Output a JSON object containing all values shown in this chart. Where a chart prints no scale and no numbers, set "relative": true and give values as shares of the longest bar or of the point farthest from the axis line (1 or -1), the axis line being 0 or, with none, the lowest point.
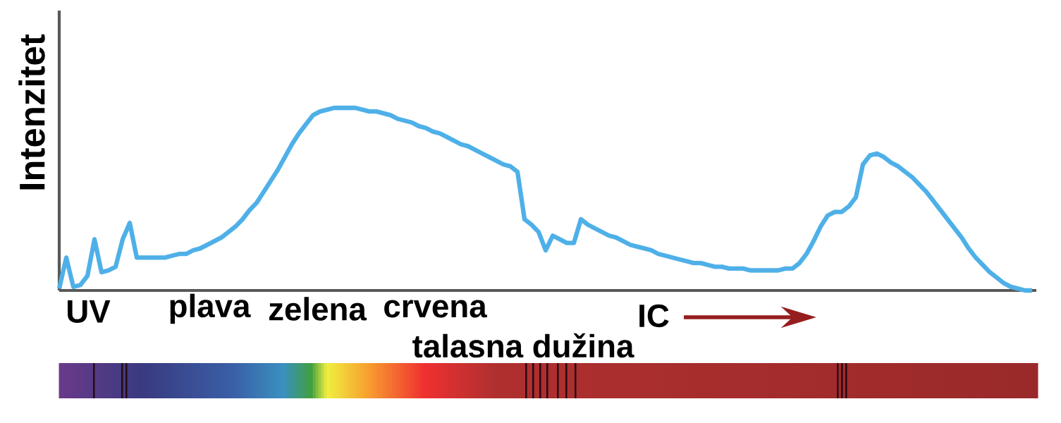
{
  "chart_data": {
    "type": "line",
    "relative": true,
    "xlabel": "talasna dužina",
    "ylabel": "Intenzitet",
    "annotations": [
      "UV",
      "plava",
      "zelena",
      "crvena",
      "IC"
    ],
    "categories": [
      null,
      null,
      null,
      null,
      null,
      null,
      null,
      null,
      null,
      null,
      null,
      null,
      null,
      null,
      null,
      null,
      null,
      null,
      null,
      null,
      null,
      null,
      null,
      null,
      null,
      null,
      null,
      null,
      null,
      null,
      null,
      null,
      null,
      null,
      null,
      null,
      null,
      null,
      null,
      null,
      null,
      null,
      null,
      null,
      null,
      null,
      null,
      null,
      null,
      null,
      null,
      null,
      null,
      null,
      null,
      null,
      null,
      null,
      null,
      null,
      null,
      null,
      null,
      null,
      null,
      null,
      null,
      null,
      null,
      null,
      null,
      null,
      null,
      null,
      null,
      null,
      null,
      null,
      null,
      null,
      null,
      null,
      null,
      null,
      null,
      null,
      null,
      null,
      null,
      null,
      null,
      null,
      null,
      null,
      null,
      null,
      null,
      null,
      null,
      null,
      null,
      null,
      null,
      null,
      null,
      null,
      null,
      null,
      null,
      null,
      null,
      null,
      null,
      null,
      null,
      null,
      null,
      null,
      null,
      null,
      null,
      null,
      null,
      null,
      null,
      null,
      null,
      null,
      null,
      null,
      null,
      null,
      null,
      null,
      null,
      null,
      null,
      null,
      null
    ],
    "color": "#4fb0e8",
    "values": [
      0.01,
      0.18,
      0.02,
      0.03,
      0.08,
      0.28,
      0.1,
      0.11,
      0.13,
      0.28,
      0.37,
      0.18,
      0.18,
      0.18,
      0.18,
      0.18,
      0.19,
      0.2,
      0.2,
      0.22,
      0.23,
      0.25,
      0.27,
      0.29,
      0.32,
      0.35,
      0.39,
      0.44,
      0.48,
      0.54,
      0.6,
      0.66,
      0.73,
      0.8,
      0.86,
      0.91,
      0.96,
      0.98,
      0.99,
      1,
      1,
      1,
      1,
      0.99,
      0.98,
      0.98,
      0.97,
      0.96,
      0.94,
      0.93,
      0.92,
      0.9,
      0.89,
      0.87,
      0.86,
      0.84,
      0.82,
      0.8,
      0.79,
      0.77,
      0.75,
      0.73,
      0.71,
      0.69,
      0.68,
      0.65,
      0.39,
      0.36,
      0.32,
      0.22,
      0.3,
      0.28,
      0.26,
      0.26,
      0.39,
      0.36,
      0.34,
      0.32,
      0.3,
      0.29,
      0.27,
      0.25,
      0.24,
      0.23,
      0.22,
      0.2,
      0.19,
      0.18,
      0.17,
      0.16,
      0.15,
      0.15,
      0.14,
      0.13,
      0.13,
      0.12,
      0.12,
      0.12,
      0.11,
      0.11,
      0.11,
      0.11,
      0.11,
      0.12,
      0.12,
      0.15,
      0.2,
      0.27,
      0.35,
      0.41,
      0.43,
      0.43,
      0.46,
      0.51,
      0.69,
      0.74,
      0.75,
      0.73,
      0.7,
      0.68,
      0.65,
      0.62,
      0.58,
      0.54,
      0.49,
      0.44,
      0.39,
      0.34,
      0.29,
      0.23,
      0.18,
      0.14,
      0.1,
      0.07,
      0.04,
      0.02,
      0.01,
      0.0,
      0
    ]
  }
}
